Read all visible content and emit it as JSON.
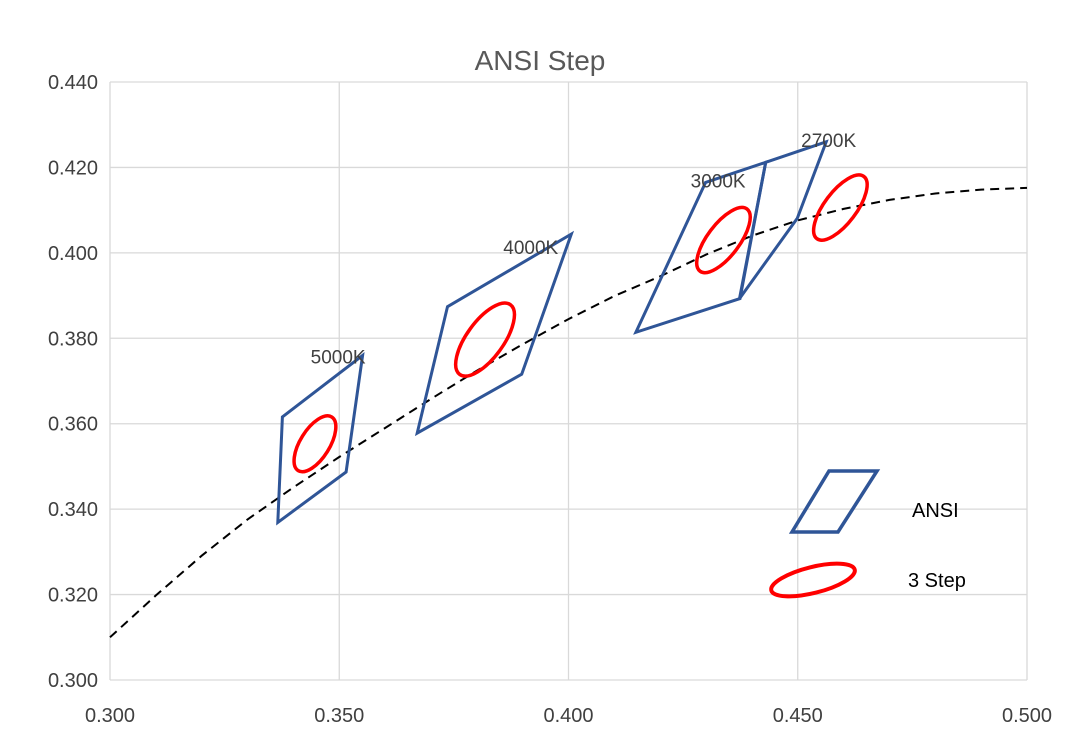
{
  "chart_data": {
    "type": "scatter",
    "title": "ANSI Step",
    "xlabel": "",
    "ylabel": "",
    "xlim": [
      0.3,
      0.5
    ],
    "ylim": [
      0.3,
      0.44
    ],
    "x_ticks": [
      "0.300",
      "0.350",
      "0.400",
      "0.450",
      "0.500"
    ],
    "y_ticks": [
      "0.300",
      "0.320",
      "0.340",
      "0.360",
      "0.380",
      "0.400",
      "0.420",
      "0.440"
    ],
    "grid": true,
    "legend_position": "bottom-right",
    "colors": {
      "ansi": "#2f5597",
      "step3": "#ff0000",
      "curve": "#000000",
      "grid": "#d9d9d9",
      "text": "#404040"
    },
    "ansi_quadrangles": [
      {
        "label": "5000K",
        "points": [
          [
            0.3376,
            0.3616
          ],
          [
            0.3551,
            0.376
          ],
          [
            0.3515,
            0.3487
          ],
          [
            0.3366,
            0.3369
          ]
        ]
      },
      {
        "label": "4000K",
        "points": [
          [
            0.3736,
            0.3874
          ],
          [
            0.4006,
            0.4044
          ],
          [
            0.3898,
            0.3716
          ],
          [
            0.367,
            0.3578
          ]
        ]
      },
      {
        "label": "3000K",
        "points": [
          [
            0.4299,
            0.4165
          ],
          [
            0.443,
            0.4212
          ],
          [
            0.4374,
            0.3893
          ],
          [
            0.4147,
            0.3814
          ]
        ]
      },
      {
        "label": "2700K",
        "points": [
          [
            0.443,
            0.4212
          ],
          [
            0.4562,
            0.426
          ],
          [
            0.4499,
            0.4081
          ],
          [
            0.4373,
            0.3893
          ]
        ]
      }
    ],
    "three_step_ellipses": [
      {
        "center": [
          0.3447,
          0.3553
        ],
        "a": 0.0069,
        "b": 0.0032,
        "angle_deg": 58
      },
      {
        "center": [
          0.3818,
          0.3797
        ],
        "a": 0.0094,
        "b": 0.004,
        "angle_deg": 54
      },
      {
        "center": [
          0.4338,
          0.403
        ],
        "a": 0.0085,
        "b": 0.0035,
        "angle_deg": 53
      },
      {
        "center": [
          0.4593,
          0.4106
        ],
        "a": 0.0085,
        "b": 0.0035,
        "angle_deg": 53
      }
    ],
    "blackbody_curve": {
      "style": "dashed",
      "x": [
        0.3,
        0.31,
        0.32,
        0.33,
        0.34,
        0.35,
        0.36,
        0.37,
        0.38,
        0.39,
        0.4,
        0.41,
        0.42,
        0.43,
        0.44,
        0.45,
        0.46,
        0.47,
        0.48,
        0.49,
        0.5
      ],
      "y": [
        0.31,
        0.3198,
        0.3291,
        0.3376,
        0.3451,
        0.3522,
        0.359,
        0.3658,
        0.3724,
        0.3786,
        0.3845,
        0.3899,
        0.3945,
        0.3996,
        0.404,
        0.4076,
        0.4103,
        0.4124,
        0.4139,
        0.4148,
        0.4152
      ]
    },
    "legend": [
      {
        "name": "ANSI",
        "symbol": "parallelogram"
      },
      {
        "name": "3 Step",
        "symbol": "ellipse"
      }
    ]
  }
}
